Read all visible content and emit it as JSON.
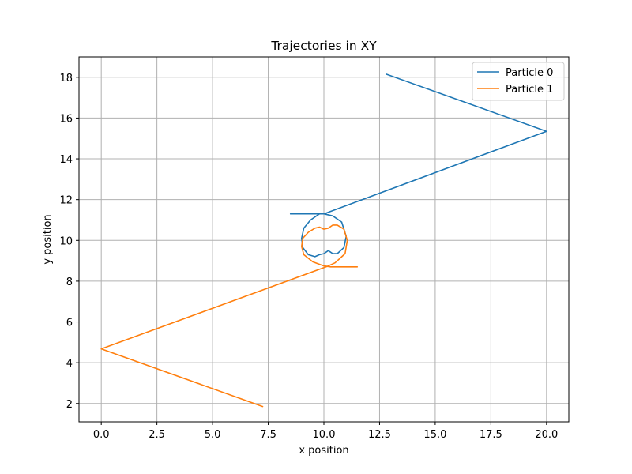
{
  "chart_data": {
    "type": "line",
    "title": "Trajectories in XY",
    "xlabel": "x position",
    "ylabel": "y position",
    "xlim": [
      -1.0,
      21.0
    ],
    "ylim": [
      1.1,
      19.0
    ],
    "xticks": [
      0.0,
      2.5,
      5.0,
      7.5,
      10.0,
      12.5,
      15.0,
      17.5,
      20.0
    ],
    "xtick_labels": [
      "0.0",
      "2.5",
      "5.0",
      "7.5",
      "10.0",
      "12.5",
      "15.0",
      "17.5",
      "20.0"
    ],
    "yticks": [
      2,
      4,
      6,
      8,
      10,
      12,
      14,
      16,
      18
    ],
    "ytick_labels": [
      "2",
      "4",
      "6",
      "8",
      "10",
      "12",
      "14",
      "16",
      "18"
    ],
    "grid": true,
    "legend_position": "top-right",
    "series": [
      {
        "name": "Particle 0",
        "color": "#1f77b4",
        "x": [
          12.8,
          20.0,
          10.0,
          10.4,
          10.8,
          11.0,
          10.9,
          10.6,
          10.4,
          10.2,
          10.0,
          9.8,
          9.6,
          9.3,
          9.05,
          9.0,
          9.1,
          9.4,
          9.8,
          10.1,
          8.5
        ],
        "y": [
          18.15,
          15.35,
          11.3,
          11.2,
          10.9,
          10.2,
          9.65,
          9.35,
          9.35,
          9.5,
          9.35,
          9.3,
          9.2,
          9.3,
          9.65,
          10.1,
          10.6,
          11.0,
          11.3,
          11.3,
          11.3
        ]
      },
      {
        "name": "Particle 1",
        "color": "#ff7f0e",
        "x": [
          7.25,
          0.0,
          10.1,
          10.5,
          10.95,
          11.05,
          10.9,
          10.6,
          10.4,
          10.2,
          10.0,
          9.8,
          9.6,
          9.3,
          9.05,
          9.0,
          9.1,
          9.5,
          10.0,
          10.3,
          11.5
        ],
        "y": [
          1.85,
          4.68,
          8.7,
          8.9,
          9.35,
          10.0,
          10.55,
          10.75,
          10.75,
          10.6,
          10.55,
          10.65,
          10.6,
          10.4,
          10.1,
          9.7,
          9.3,
          8.95,
          8.75,
          8.7,
          8.7
        ]
      }
    ]
  }
}
